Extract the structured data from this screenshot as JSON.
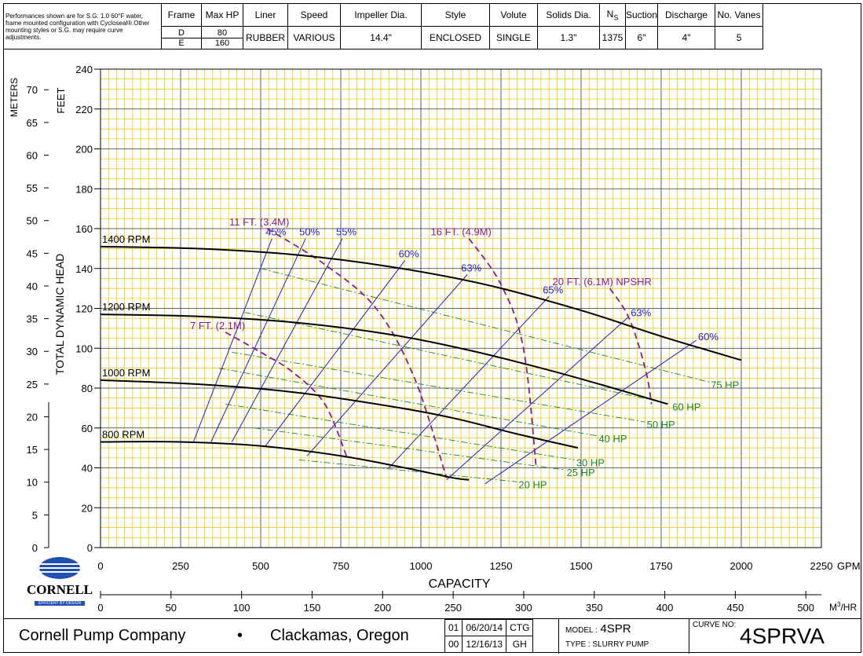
{
  "note": "Performances shown are for S.G. 1.0 60°F water, frame mounted configuration with Cycloseal®.Other mounting styles or S.G. may require curve adjustments.",
  "spec": {
    "headers": [
      "Frame",
      "Max HP",
      "Liner",
      "Speed",
      "Impeller Dia.",
      "Style",
      "Volute",
      "Solids Dia.",
      "Ns",
      "Suction",
      "Discharge",
      "No. Vanes"
    ],
    "frames": [
      "D",
      "E"
    ],
    "max_hp": [
      "80",
      "160"
    ],
    "liner": "RUBBER",
    "speed": "VARIOUS",
    "impeller_dia": "14.4\"",
    "style": "ENCLOSED",
    "volute": "SINGLE",
    "solids_dia": "1.3\"",
    "ns": "1375",
    "suction": "6\"",
    "discharge": "4\"",
    "vanes": "5"
  },
  "footer": {
    "company": "Cornell Pump Company",
    "bullet": "•",
    "city": "Clackamas, Oregon",
    "revisions": [
      [
        "01",
        "06/20/14",
        "CTG"
      ],
      [
        "00",
        "12/16/13",
        "GH"
      ]
    ],
    "model_label": "MODEL :",
    "model": "4SPR",
    "type": "TYPE : SLURRY PUMP",
    "curve_label": "CURVE NO:",
    "curve_no": "4SPRVA"
  },
  "logo": {
    "name": "CORNELL",
    "tagline": "EFFICIENT BY DESIGN"
  },
  "colors": {
    "grid": "#e8c000",
    "speed": "#000000",
    "eff": "#1f1fcc",
    "npsh": "#8b1c8b",
    "hp": "#1a8a1a"
  },
  "chart_data": {
    "type": "line",
    "xlabel": "CAPACITY",
    "x_unit": "GPM",
    "x2_unit": "M3/HR",
    "ylabel": "TOTAL DYNAMIC HEAD",
    "y_unit": "FEET",
    "y2_unit": "METERS",
    "xlim": [
      0,
      2250
    ],
    "ylim": [
      0,
      240
    ],
    "x_ticks": [
      0,
      250,
      500,
      750,
      1000,
      1250,
      1500,
      1750,
      2000,
      2250
    ],
    "x2_ticks": [
      0,
      50,
      100,
      150,
      200,
      250,
      300,
      350,
      400,
      450,
      500
    ],
    "y_ticks": [
      0,
      20,
      40,
      60,
      80,
      100,
      120,
      140,
      160,
      180,
      200,
      220,
      240
    ],
    "y2_ticks": [
      0,
      5,
      10,
      15,
      20,
      25,
      30,
      35,
      40,
      45,
      50,
      55,
      60,
      65,
      70
    ],
    "speed_curves": [
      {
        "name": "1400 RPM",
        "points": [
          [
            0,
            151
          ],
          [
            300,
            150
          ],
          [
            600,
            147
          ],
          [
            900,
            141
          ],
          [
            1200,
            132
          ],
          [
            1500,
            119
          ],
          [
            1750,
            106
          ],
          [
            2000,
            94
          ]
        ]
      },
      {
        "name": "1200 RPM",
        "points": [
          [
            0,
            117
          ],
          [
            300,
            116
          ],
          [
            600,
            113
          ],
          [
            900,
            107
          ],
          [
            1150,
            99
          ],
          [
            1400,
            89
          ],
          [
            1600,
            80
          ],
          [
            1770,
            72
          ]
        ]
      },
      {
        "name": "1000 RPM",
        "points": [
          [
            0,
            84
          ],
          [
            300,
            82
          ],
          [
            600,
            78
          ],
          [
            900,
            71
          ],
          [
            1100,
            65
          ],
          [
            1300,
            57
          ],
          [
            1490,
            50
          ]
        ]
      },
      {
        "name": "800 RPM",
        "points": [
          [
            0,
            53
          ],
          [
            250,
            53
          ],
          [
            500,
            51
          ],
          [
            750,
            46
          ],
          [
            950,
            40
          ],
          [
            1100,
            35
          ],
          [
            1150,
            34
          ]
        ]
      }
    ],
    "efficiency_lines": [
      {
        "name": "45%",
        "points": [
          [
            290,
            53
          ],
          [
            535,
            155
          ]
        ]
      },
      {
        "name": "50%",
        "points": [
          [
            345,
            53
          ],
          [
            640,
            155
          ]
        ]
      },
      {
        "name": "55%",
        "points": [
          [
            410,
            53
          ],
          [
            755,
            155
          ]
        ]
      },
      {
        "name": "60%",
        "points": [
          [
            515,
            51
          ],
          [
            950,
            144
          ]
        ]
      },
      {
        "name": "63%",
        "points": [
          [
            645,
            46
          ],
          [
            1145,
            137
          ]
        ]
      },
      {
        "name": "65%",
        "points": [
          [
            900,
            40
          ],
          [
            1400,
            126
          ]
        ]
      },
      {
        "name": "63%",
        "points": [
          [
            1080,
            34
          ],
          [
            1650,
            116
          ]
        ]
      },
      {
        "name": "60%",
        "points": [
          [
            1200,
            32
          ],
          [
            1860,
            104
          ]
        ]
      }
    ],
    "npshr_curves": [
      {
        "name": "7 FT. (2.1M)",
        "points": [
          [
            390,
            108
          ],
          [
            500,
            98
          ],
          [
            600,
            88
          ],
          [
            700,
            72
          ],
          [
            770,
            45
          ]
        ]
      },
      {
        "name": "11 FT. (3.4M)",
        "points": [
          [
            520,
            160
          ],
          [
            700,
            142
          ],
          [
            860,
            120
          ],
          [
            980,
            85
          ],
          [
            1080,
            35
          ]
        ]
      },
      {
        "name": "16 FT. (4.9M)",
        "points": [
          [
            1150,
            155
          ],
          [
            1250,
            132
          ],
          [
            1320,
            100
          ],
          [
            1360,
            40
          ]
        ]
      },
      {
        "name": "20 FT. (6.1M) NPSHR",
        "points": [
          [
            1590,
            130
          ],
          [
            1650,
            115
          ],
          [
            1700,
            90
          ],
          [
            1720,
            72
          ]
        ]
      }
    ],
    "hp_lines": [
      {
        "name": "75 HP",
        "points": [
          [
            500,
            140
          ],
          [
            1900,
            83
          ]
        ]
      },
      {
        "name": "60 HP",
        "points": [
          [
            450,
            118
          ],
          [
            1780,
            72
          ]
        ]
      },
      {
        "name": "50 HP",
        "points": [
          [
            410,
            98
          ],
          [
            1700,
            63
          ]
        ]
      },
      {
        "name": "40 HP",
        "points": [
          [
            370,
            90
          ],
          [
            1550,
            56
          ]
        ]
      },
      {
        "name": "30 HP",
        "points": [
          [
            390,
            72
          ],
          [
            1480,
            44
          ]
        ]
      },
      {
        "name": "25 HP",
        "points": [
          [
            480,
            60
          ],
          [
            1450,
            39
          ]
        ]
      },
      {
        "name": "20 HP",
        "points": [
          [
            620,
            44
          ],
          [
            1300,
            33
          ]
        ]
      }
    ]
  }
}
